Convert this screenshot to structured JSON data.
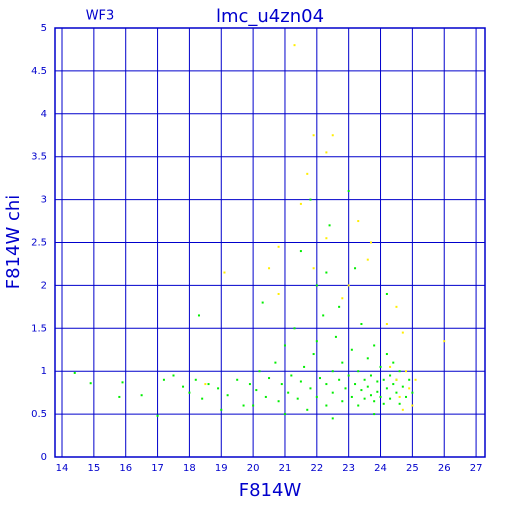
{
  "chart_data": {
    "type": "scatter",
    "title": "lmc_u4zn04",
    "subtitle": "WF3",
    "x_label": "F814W",
    "y_label": "F814W chi",
    "xlim": [
      13.78,
      27.28
    ],
    "ylim": [
      0,
      5
    ],
    "xticks": [
      14,
      15,
      16,
      17,
      18,
      19,
      20,
      21,
      22,
      23,
      24,
      25,
      26,
      27
    ],
    "yticks": [
      0,
      0.5,
      1,
      1.5,
      2,
      2.5,
      3,
      3.5,
      4,
      4.5,
      5
    ],
    "grid": true,
    "axis_color": "#0000cc",
    "series": [
      {
        "color": "#00ee00",
        "x": [
          14.4,
          14.9,
          15.9,
          15.8,
          16.5,
          17.0,
          17.2,
          17.5,
          17.8,
          18.0,
          18.2,
          18.4,
          18.6,
          18.3,
          18.9,
          19.2,
          19.5,
          19.7,
          19.9,
          20.1,
          20.2,
          20.4,
          20.5,
          20.7,
          20.8,
          20.9,
          21.0,
          21.1,
          21.2,
          21.3,
          21.4,
          21.5,
          21.6,
          21.7,
          21.8,
          21.9,
          22.0,
          22.0,
          22.1,
          22.2,
          22.3,
          22.3,
          22.4,
          22.5,
          22.5,
          22.6,
          22.7,
          22.8,
          22.8,
          22.9,
          23.0,
          23.0,
          23.1,
          23.1,
          23.2,
          23.3,
          23.3,
          23.4,
          23.4,
          23.5,
          23.5,
          23.6,
          23.6,
          23.7,
          23.7,
          23.8,
          23.8,
          23.9,
          23.9,
          24.0,
          24.0,
          24.1,
          24.1,
          24.2,
          24.2,
          24.3,
          24.3,
          24.4,
          24.4,
          24.5,
          24.5,
          24.6,
          24.6,
          24.7,
          24.8,
          24.9,
          25.0,
          21.8,
          22.3,
          21.5,
          20.3,
          19.0,
          23.2,
          22.7,
          24.2,
          21.0,
          22.5,
          23.8,
          20.0,
          22.0
        ],
        "y": [
          0.98,
          0.86,
          0.87,
          0.7,
          0.72,
          0.48,
          0.9,
          0.95,
          0.82,
          0.75,
          0.9,
          0.68,
          0.85,
          1.65,
          0.8,
          0.72,
          0.9,
          0.6,
          0.85,
          0.78,
          1.0,
          0.7,
          0.92,
          1.1,
          0.65,
          0.85,
          1.3,
          0.75,
          0.95,
          1.5,
          0.68,
          0.88,
          1.05,
          0.55,
          0.8,
          1.2,
          0.7,
          2.0,
          0.92,
          1.65,
          0.6,
          0.85,
          2.7,
          1.0,
          0.75,
          1.4,
          0.9,
          0.65,
          1.1,
          0.8,
          3.1,
          0.95,
          0.7,
          1.25,
          0.85,
          0.6,
          1.0,
          1.55,
          0.78,
          0.9,
          0.68,
          1.15,
          0.82,
          0.72,
          0.95,
          1.3,
          0.65,
          0.88,
          0.76,
          1.05,
          0.7,
          0.9,
          0.62,
          1.2,
          0.8,
          0.95,
          0.68,
          0.85,
          1.1,
          0.75,
          0.9,
          0.62,
          1.0,
          0.82,
          0.7,
          0.9,
          0.75,
          3.0,
          2.15,
          2.4,
          1.8,
          0.55,
          2.2,
          1.75,
          1.9,
          0.5,
          0.45,
          0.5,
          0.6,
          1.35
        ]
      },
      {
        "color": "#ffee00",
        "x": [
          21.3,
          22.5,
          22.3,
          21.9,
          21.7,
          21.5,
          23.3,
          22.3,
          20.8,
          20.5,
          19.1,
          23.6,
          23.7,
          24.5,
          24.7,
          23.0,
          22.8,
          26.0,
          24.5,
          24.8,
          24.9,
          24.6,
          25.0,
          24.3,
          24.7,
          25.1,
          20.8,
          18.5,
          21.9,
          24.2
        ],
        "y": [
          4.8,
          3.75,
          3.55,
          3.75,
          3.3,
          2.95,
          2.75,
          2.55,
          2.45,
          2.2,
          2.15,
          2.3,
          2.5,
          1.75,
          1.45,
          2.0,
          1.85,
          1.35,
          0.9,
          1.0,
          0.8,
          0.7,
          0.6,
          1.05,
          0.55,
          0.9,
          1.9,
          0.85,
          2.2,
          1.55
        ]
      }
    ]
  }
}
